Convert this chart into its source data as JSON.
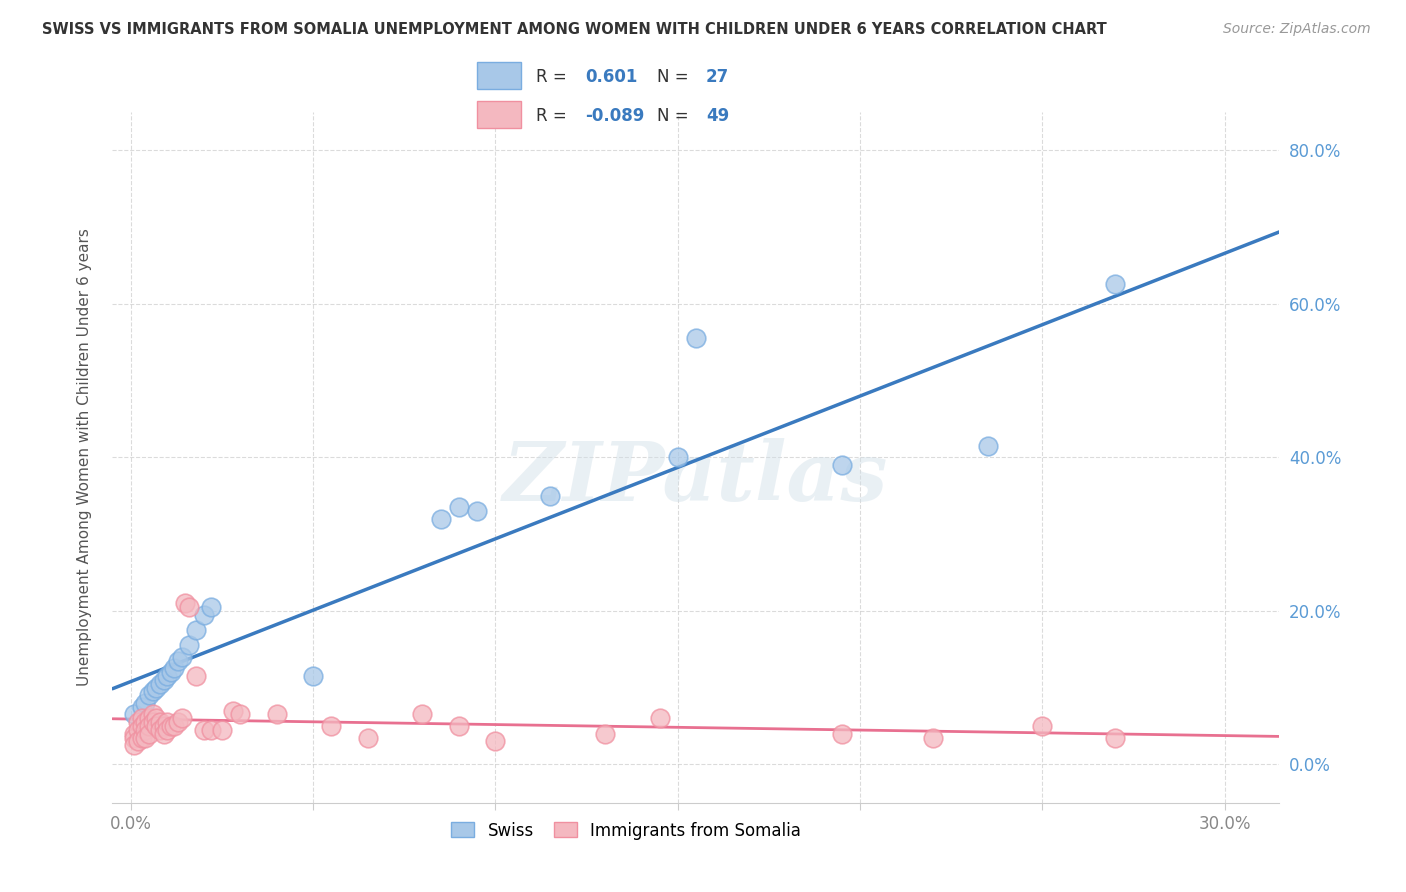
{
  "title": "SWISS VS IMMIGRANTS FROM SOMALIA UNEMPLOYMENT AMONG WOMEN WITH CHILDREN UNDER 6 YEARS CORRELATION CHART",
  "source": "Source: ZipAtlas.com",
  "ylabel": "Unemployment Among Women with Children Under 6 years",
  "legend_swiss_R": "0.601",
  "legend_swiss_N": "27",
  "legend_somalia_R": "-0.089",
  "legend_somalia_N": "49",
  "swiss_color": "#a8c8e8",
  "somalia_color": "#f4b8c0",
  "swiss_line_color": "#3a7abf",
  "somalia_line_color": "#e87090",
  "swiss_marker_edge": "#7aade0",
  "somalia_marker_edge": "#f090a0",
  "background_color": "#ffffff",
  "grid_color": "#cccccc",
  "right_tick_color": "#5b9bd5",
  "swiss_x": [
    0.001,
    0.003,
    0.004,
    0.005,
    0.006,
    0.007,
    0.008,
    0.009,
    0.01,
    0.011,
    0.012,
    0.013,
    0.014,
    0.016,
    0.018,
    0.02,
    0.022,
    0.05,
    0.085,
    0.09,
    0.095,
    0.115,
    0.15,
    0.155,
    0.195,
    0.235,
    0.27
  ],
  "swiss_y": [
    0.065,
    0.075,
    0.08,
    0.09,
    0.095,
    0.1,
    0.105,
    0.11,
    0.115,
    0.12,
    0.125,
    0.135,
    0.14,
    0.155,
    0.175,
    0.195,
    0.205,
    0.115,
    0.32,
    0.335,
    0.33,
    0.35,
    0.4,
    0.555,
    0.39,
    0.415,
    0.625
  ],
  "somalia_x": [
    0.001,
    0.001,
    0.001,
    0.002,
    0.002,
    0.002,
    0.003,
    0.003,
    0.003,
    0.004,
    0.004,
    0.004,
    0.005,
    0.005,
    0.005,
    0.006,
    0.006,
    0.007,
    0.007,
    0.008,
    0.008,
    0.009,
    0.009,
    0.01,
    0.01,
    0.011,
    0.012,
    0.013,
    0.014,
    0.015,
    0.016,
    0.018,
    0.02,
    0.022,
    0.025,
    0.028,
    0.03,
    0.04,
    0.055,
    0.065,
    0.08,
    0.09,
    0.1,
    0.13,
    0.145,
    0.195,
    0.22,
    0.25,
    0.27
  ],
  "somalia_y": [
    0.04,
    0.035,
    0.025,
    0.055,
    0.045,
    0.03,
    0.06,
    0.05,
    0.035,
    0.055,
    0.045,
    0.035,
    0.06,
    0.05,
    0.04,
    0.065,
    0.055,
    0.06,
    0.05,
    0.055,
    0.045,
    0.05,
    0.04,
    0.055,
    0.045,
    0.05,
    0.05,
    0.055,
    0.06,
    0.21,
    0.205,
    0.115,
    0.045,
    0.045,
    0.045,
    0.07,
    0.065,
    0.065,
    0.05,
    0.035,
    0.065,
    0.05,
    0.03,
    0.04,
    0.06,
    0.04,
    0.035,
    0.05,
    0.035
  ],
  "xlim": [
    -0.005,
    0.315
  ],
  "ylim": [
    -0.05,
    0.85
  ],
  "xticks": [
    0.0,
    0.05,
    0.1,
    0.15,
    0.2,
    0.25,
    0.3
  ],
  "yticks_right": [
    0.0,
    0.2,
    0.4,
    0.6,
    0.8
  ],
  "xtick_labels": [
    "0.0%",
    "",
    "",
    "",
    "",
    "",
    "30.0%"
  ],
  "ytick_labels_right": [
    "0.0%",
    "20.0%",
    "40.0%",
    "60.0%",
    "80.0%"
  ]
}
